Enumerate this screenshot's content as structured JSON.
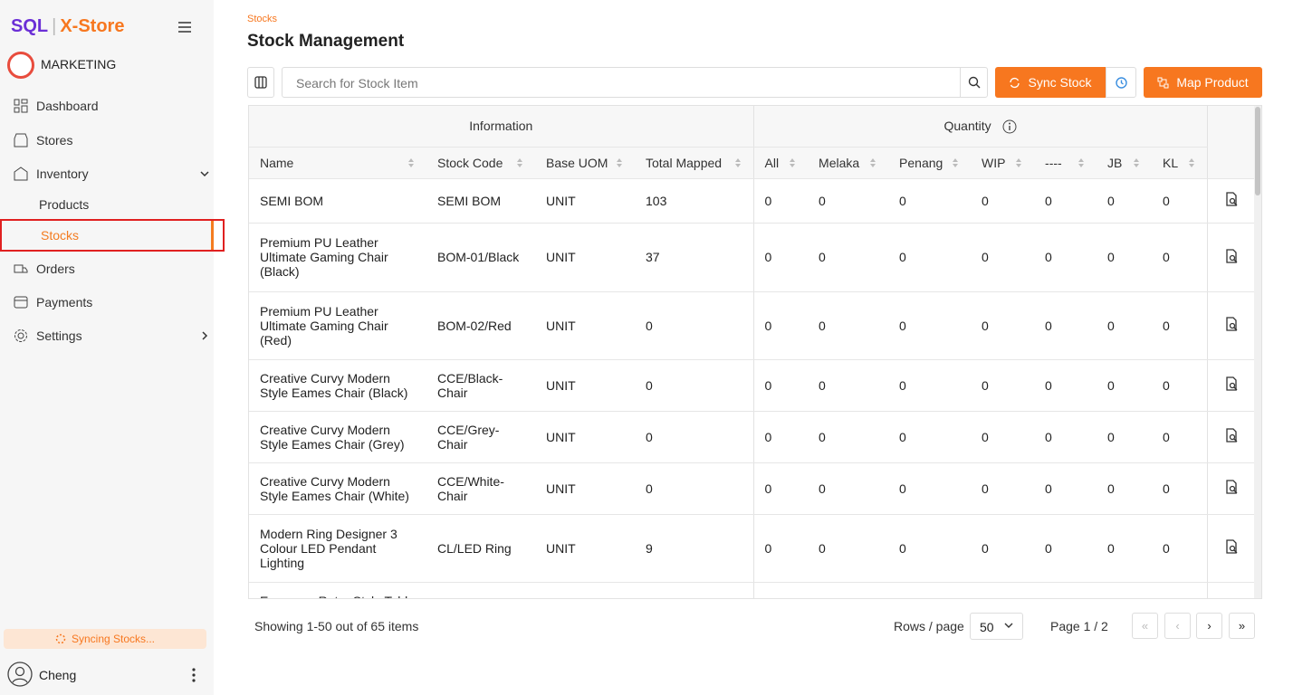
{
  "sidebar": {
    "brand": {
      "sql": "SQL",
      "store": "X-Store"
    },
    "org": "MARKETING",
    "nav": [
      "Dashboard",
      "Stores",
      "Inventory",
      "Products",
      "Stocks",
      "Orders",
      "Payments",
      "Settings"
    ],
    "status": "Syncing Stocks...",
    "user": "Cheng"
  },
  "header": {
    "breadcrumb": "Stocks",
    "title": "Stock Management"
  },
  "toolbar": {
    "search_placeholder": "Search for Stock Item",
    "sync": "Sync Stock",
    "map": "Map Product"
  },
  "table": {
    "groups": [
      "Information",
      "Quantity"
    ],
    "columns": [
      "Name",
      "Stock Code",
      "Base UOM",
      "Total Mapped",
      "All",
      "Melaka",
      "Penang",
      "WIP",
      "----",
      "JB",
      "KL"
    ],
    "rows": [
      [
        "SEMI BOM",
        "SEMI BOM",
        "UNIT",
        103,
        0,
        0,
        0,
        0,
        0,
        0,
        0
      ],
      [
        "Premium PU Leather Ultimate Gaming Chair (Black)",
        "BOM-01/Black",
        "UNIT",
        37,
        0,
        0,
        0,
        0,
        0,
        0,
        0
      ],
      [
        "Premium PU Leather Ultimate Gaming Chair (Red)",
        "BOM-02/Red",
        "UNIT",
        0,
        0,
        0,
        0,
        0,
        0,
        0,
        0
      ],
      [
        "Creative Curvy Modern Style Eames Chair (Black)",
        "CCE/Black-Chair",
        "UNIT",
        0,
        0,
        0,
        0,
        0,
        0,
        0,
        0
      ],
      [
        "Creative Curvy Modern Style Eames Chair (Grey)",
        "CCE/Grey-Chair",
        "UNIT",
        0,
        0,
        0,
        0,
        0,
        0,
        0,
        0
      ],
      [
        "Creative Curvy Modern Style Eames Chair (White)",
        "CCE/White-Chair",
        "UNIT",
        0,
        0,
        0,
        0,
        0,
        0,
        0,
        0
      ],
      [
        "Modern Ring Designer 3 Colour LED Pendant Lighting",
        "CL/LED Ring",
        "UNIT",
        9,
        0,
        0,
        0,
        0,
        0,
        0,
        0
      ],
      [
        "European Retro Style Table"
      ]
    ]
  },
  "footer": {
    "showing": "Showing 1-50 out of 65 items",
    "rows_label": "Rows / page",
    "rows_value": "50",
    "page": "Page 1 / 2"
  }
}
